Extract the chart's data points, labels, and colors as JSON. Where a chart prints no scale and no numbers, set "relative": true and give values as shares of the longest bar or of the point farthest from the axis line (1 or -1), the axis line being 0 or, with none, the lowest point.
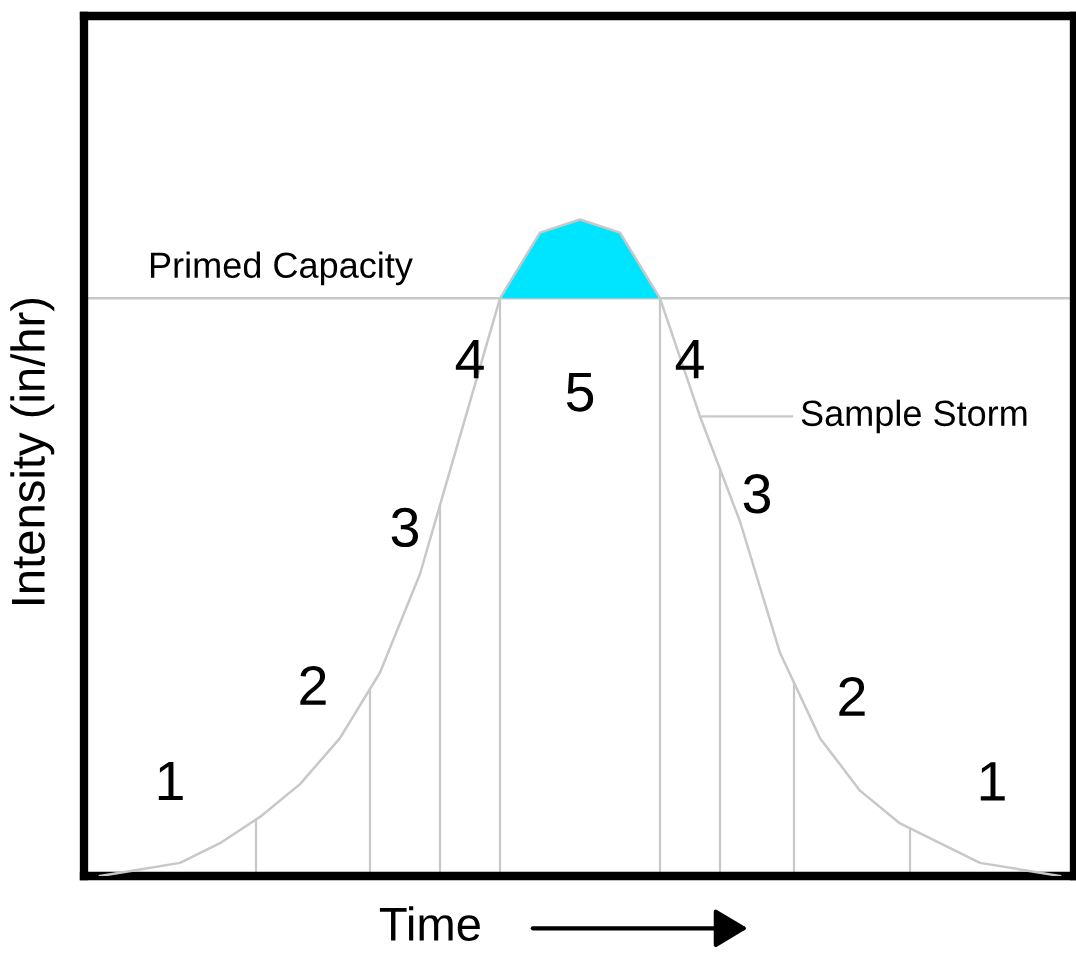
{
  "chart_data": {
    "type": "line",
    "relative": true,
    "xlabel": "Time",
    "ylabel": "Intensity (in/hr)",
    "categories": [
      null,
      null,
      null,
      null,
      null,
      null,
      null,
      null,
      null,
      null,
      null,
      null,
      null,
      null,
      null,
      null,
      null,
      null,
      null,
      null,
      null,
      null,
      null,
      null,
      null
    ],
    "series": [
      {
        "name": "Sample Storm",
        "color": "#c8c8c8",
        "values": [
          0.0,
          0.01,
          0.02,
          0.05,
          0.09,
          0.14,
          0.21,
          0.31,
          0.46,
          0.67,
          0.88,
          0.98,
          1.0,
          0.98,
          0.88,
          0.7,
          0.54,
          0.34,
          0.21,
          0.13,
          0.08,
          0.05,
          0.02,
          0.01,
          0.0
        ]
      }
    ],
    "ref_lines": [
      {
        "axis": "y",
        "value": 0.88,
        "label": "Primed Capacity",
        "color": "#c8c8c8"
      }
    ],
    "bands": [
      {
        "axis": "y",
        "from": 0.88,
        "to": 1.0,
        "color": "#00e5ff"
      }
    ],
    "annotations": [
      "1",
      "2",
      "3",
      "4",
      "5",
      "4",
      "3",
      "2",
      "1"
    ],
    "grid": false,
    "legend": "right"
  }
}
